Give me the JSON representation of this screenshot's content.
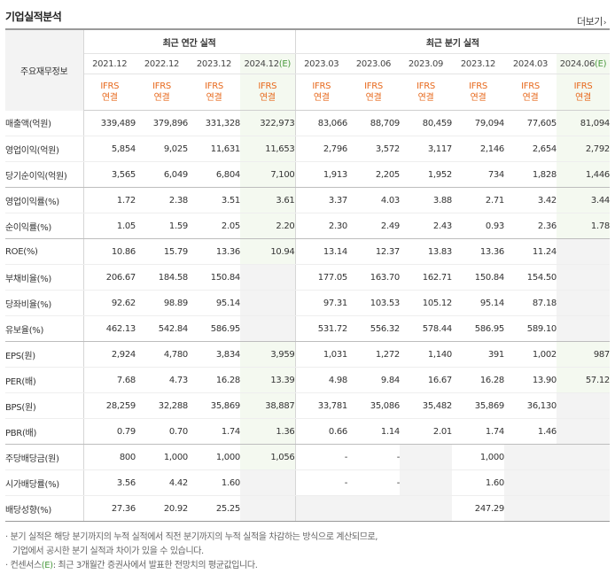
{
  "header": {
    "title": "기업실적분석",
    "more_label": "더보기",
    "more_icon": "chevron-right-icon"
  },
  "table": {
    "corner_label": "주요재무정보",
    "annual_group_label": "최근 연간 실적",
    "quarterly_group_label": "최근 분기 실적",
    "periods": [
      {
        "label": "2021.12",
        "ifrs": "IFRS",
        "basis": "연결",
        "estimate": false,
        "mark": ""
      },
      {
        "label": "2022.12",
        "ifrs": "IFRS",
        "basis": "연결",
        "estimate": false,
        "mark": ""
      },
      {
        "label": "2023.12",
        "ifrs": "IFRS",
        "basis": "연결",
        "estimate": false,
        "mark": ""
      },
      {
        "label": "2024.12",
        "ifrs": "IFRS",
        "basis": "연결",
        "estimate": true,
        "mark": "(E)"
      },
      {
        "label": "2023.03",
        "ifrs": "IFRS",
        "basis": "연결",
        "estimate": false,
        "mark": ""
      },
      {
        "label": "2023.06",
        "ifrs": "IFRS",
        "basis": "연결",
        "estimate": false,
        "mark": ""
      },
      {
        "label": "2023.09",
        "ifrs": "IFRS",
        "basis": "연결",
        "estimate": false,
        "mark": ""
      },
      {
        "label": "2023.12",
        "ifrs": "IFRS",
        "basis": "연결",
        "estimate": false,
        "mark": ""
      },
      {
        "label": "2024.03",
        "ifrs": "IFRS",
        "basis": "연결",
        "estimate": false,
        "mark": ""
      },
      {
        "label": "2024.06",
        "ifrs": "IFRS",
        "basis": "연결",
        "estimate": true,
        "mark": "(E)"
      }
    ],
    "rows": [
      {
        "label": "매출액(억원)",
        "values": [
          "339,489",
          "379,896",
          "331,328",
          "322,973",
          "83,066",
          "88,709",
          "80,459",
          "79,094",
          "77,605",
          "81,094"
        ]
      },
      {
        "label": "영업이익(억원)",
        "values": [
          "5,854",
          "9,025",
          "11,631",
          "11,653",
          "2,796",
          "3,572",
          "3,117",
          "2,146",
          "2,654",
          "2,792"
        ]
      },
      {
        "label": "당기순이익(억원)",
        "values": [
          "3,565",
          "6,049",
          "6,804",
          "7,100",
          "1,913",
          "2,205",
          "1,952",
          "734",
          "1,828",
          "1,446"
        ]
      },
      {
        "label": "영업이익률(%)",
        "values": [
          "1.72",
          "2.38",
          "3.51",
          "3.61",
          "3.37",
          "4.03",
          "3.88",
          "2.71",
          "3.42",
          "3.44"
        ]
      },
      {
        "label": "순이익률(%)",
        "values": [
          "1.05",
          "1.59",
          "2.05",
          "2.20",
          "2.30",
          "2.49",
          "2.43",
          "0.93",
          "2.36",
          "1.78"
        ]
      },
      {
        "label": "ROE(%)",
        "values": [
          "10.86",
          "15.79",
          "13.36",
          "10.94",
          "13.14",
          "12.37",
          "13.83",
          "13.36",
          "11.24",
          ""
        ]
      },
      {
        "label": "부채비율(%)",
        "values": [
          "206.67",
          "184.58",
          "150.84",
          "",
          "177.05",
          "163.70",
          "162.71",
          "150.84",
          "154.50",
          ""
        ]
      },
      {
        "label": "당좌비율(%)",
        "values": [
          "92.62",
          "98.89",
          "95.14",
          "",
          "97.31",
          "103.53",
          "105.12",
          "95.14",
          "87.18",
          ""
        ]
      },
      {
        "label": "유보율(%)",
        "values": [
          "462.13",
          "542.84",
          "586.95",
          "",
          "531.72",
          "556.32",
          "578.44",
          "586.95",
          "589.10",
          ""
        ]
      },
      {
        "label": "EPS(원)",
        "values": [
          "2,924",
          "4,780",
          "3,834",
          "3,959",
          "1,031",
          "1,272",
          "1,140",
          "391",
          "1,002",
          "987"
        ]
      },
      {
        "label": "PER(배)",
        "values": [
          "7.68",
          "4.73",
          "16.28",
          "13.39",
          "4.98",
          "9.84",
          "16.67",
          "16.28",
          "13.90",
          "57.12"
        ]
      },
      {
        "label": "BPS(원)",
        "values": [
          "28,259",
          "32,288",
          "35,869",
          "38,887",
          "33,781",
          "35,086",
          "35,482",
          "35,869",
          "36,130",
          ""
        ]
      },
      {
        "label": "PBR(배)",
        "values": [
          "0.79",
          "0.70",
          "1.74",
          "1.36",
          "0.66",
          "1.14",
          "2.01",
          "1.74",
          "1.46",
          ""
        ]
      },
      {
        "label": "주당배당금(원)",
        "values": [
          "800",
          "1,000",
          "1,000",
          "1,056",
          "-",
          "-",
          "",
          "1,000",
          "",
          ""
        ]
      },
      {
        "label": "시가배당률(%)",
        "values": [
          "3.56",
          "4.42",
          "1.60",
          "",
          "-",
          "-",
          "",
          "1.60",
          "",
          ""
        ]
      },
      {
        "label": "배당성향(%)",
        "values": [
          "27.36",
          "20.92",
          "25.25",
          "",
          "",
          "",
          "",
          "247.29",
          "",
          ""
        ]
      }
    ]
  },
  "notes": {
    "line1": "분기 실적은 해당 분기까지의 누적 실적에서 직전 분기까지의 누적 실적을 차감하는 방식으로 계산되므로,",
    "line2": "기업에서 공시한 분기 실적과 차이가 있을 수 있습니다.",
    "line3_prefix": "컨센서스",
    "line3_mark": "(E)",
    "line3_suffix": ": 최근 3개월간 증권사에서 발표한 전망치의 평균값입니다."
  },
  "colors": {
    "ifrs": "#e7691d",
    "estimate_bg": "#f4f9f0",
    "empty_bg": "#f3f3f3",
    "estimate_mark": "#4a9a3e"
  }
}
